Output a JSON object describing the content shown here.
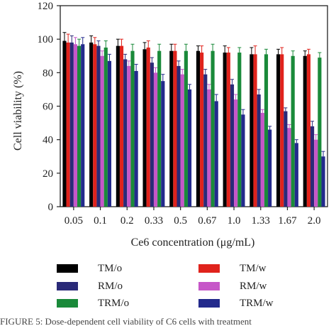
{
  "chart_data": {
    "type": "bar",
    "xlabel": "Ce6 concentration (μg/mL)",
    "ylabel": "Cell viability (%)",
    "ylim": [
      0,
      120
    ],
    "yticks": [
      0,
      20,
      40,
      60,
      80,
      100,
      120
    ],
    "grid": false,
    "legend_position": "bottom",
    "error_bars": true,
    "categories": [
      "0.05",
      "0.1",
      "0.2",
      "0.33",
      "0.5",
      "0.67",
      "1.0",
      "1.33",
      "1.67",
      "2.0"
    ],
    "series": [
      {
        "name": "TM/o",
        "color": "#000000",
        "values": [
          99,
          98,
          96,
          94,
          93,
          93,
          92,
          91,
          91,
          90
        ],
        "errors": [
          5,
          4,
          4,
          4,
          4,
          3,
          4,
          4,
          3,
          3
        ]
      },
      {
        "name": "TM/w",
        "color": "#e0231c",
        "values": [
          98,
          97,
          96,
          95,
          93,
          92,
          92,
          91,
          91,
          91
        ],
        "errors": [
          5,
          4,
          4,
          4,
          4,
          4,
          3,
          5,
          4,
          3
        ]
      },
      {
        "name": "RM/o",
        "color": "#2a2a78",
        "values": [
          98,
          96,
          88,
          86,
          84,
          79,
          73,
          67,
          57,
          48
        ],
        "errors": [
          4,
          3,
          3,
          3,
          3,
          3,
          3,
          3,
          2,
          3
        ]
      },
      {
        "name": "RM/w",
        "color": "#c657c8",
        "values": [
          97,
          90,
          84,
          80,
          79,
          70,
          64,
          56,
          47,
          40
        ],
        "errors": [
          4,
          3,
          3,
          3,
          3,
          3,
          3,
          2,
          2,
          3
        ]
      },
      {
        "name": "TRM/o",
        "color": "#1a8a3a",
        "values": [
          96,
          95,
          93,
          93,
          93,
          93,
          92,
          91,
          90,
          89
        ],
        "errors": [
          4,
          4,
          4,
          4,
          4,
          4,
          3,
          3,
          3,
          3
        ]
      },
      {
        "name": "TRM/w",
        "color": "#232a8c",
        "values": [
          97,
          87,
          81,
          75,
          70,
          63,
          55,
          46,
          38,
          30
        ],
        "errors": [
          4,
          4,
          4,
          4,
          3,
          4,
          3,
          2,
          2,
          3
        ]
      }
    ]
  },
  "legend": {
    "items": [
      {
        "label": "TM/o",
        "color": "#000000"
      },
      {
        "label": "TM/w",
        "color": "#e0231c"
      },
      {
        "label": "RM/o",
        "color": "#2a2a78"
      },
      {
        "label": "RM/w",
        "color": "#c657c8"
      },
      {
        "label": "TRM/o",
        "color": "#1a8a3a"
      },
      {
        "label": "TRM/w",
        "color": "#232a8c"
      }
    ]
  },
  "caption": "FIGURE 5: Dose-dependent cell viability of C6 cells with treatment"
}
